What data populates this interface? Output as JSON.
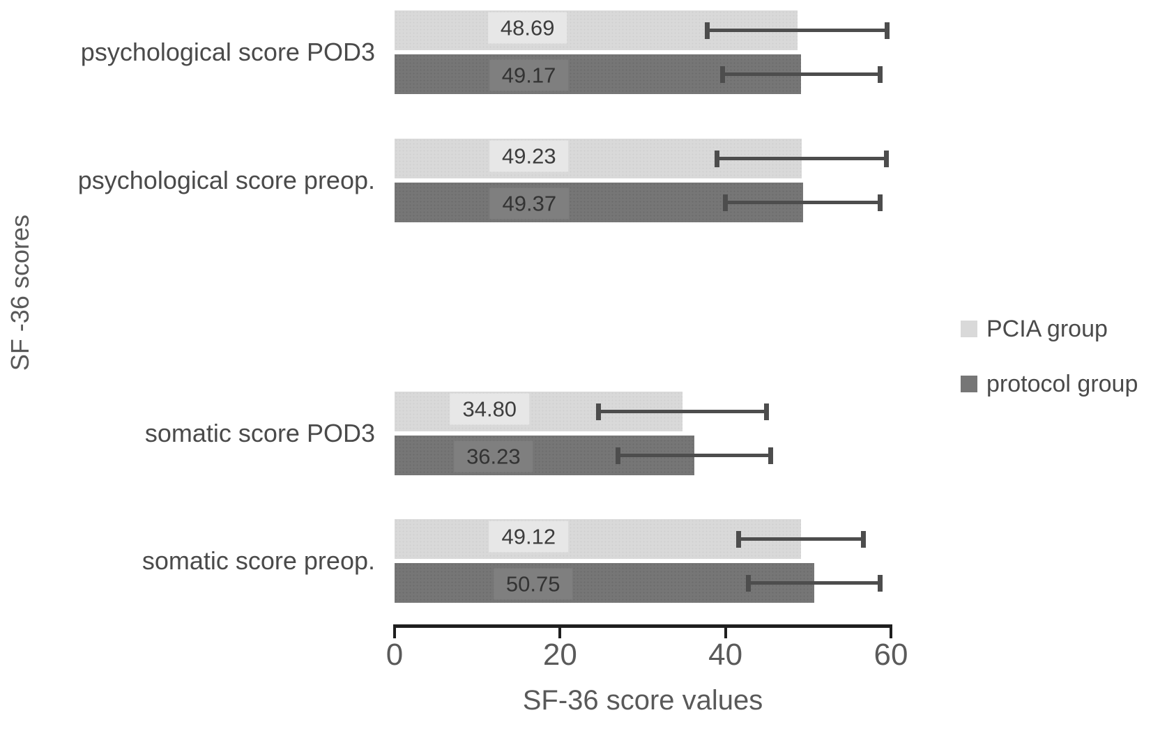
{
  "chart_data": {
    "type": "bar",
    "orientation": "horizontal",
    "title": "",
    "xlabel": "SF-36 score values",
    "ylabel": "SF -36 scores",
    "xlim": [
      0,
      60
    ],
    "xticks": [
      0,
      20,
      40,
      60
    ],
    "grid": false,
    "legend_position": "right-middle",
    "categories": [
      "psychological score POD3",
      "psychological score preop.",
      "somatic score POD3",
      "somatic score preop."
    ],
    "series": [
      {
        "name": "PCIA group",
        "color": "#d9d9d9",
        "values": [
          48.69,
          49.23,
          34.8,
          49.12
        ],
        "labels": [
          "48.69",
          "49.23",
          "34.80",
          "49.12"
        ],
        "error": [
          10.9,
          10.3,
          10.2,
          7.6
        ]
      },
      {
        "name": "protocol group",
        "color": "#767676",
        "values": [
          49.17,
          49.37,
          36.23,
          50.75
        ],
        "labels": [
          "49.17",
          "49.37",
          "36.23",
          "50.75"
        ],
        "error": [
          9.6,
          9.4,
          9.3,
          8.0
        ]
      }
    ],
    "error_bar_color": "#4d4d4d",
    "axis_color": "#1f1f1f",
    "tick_labels": [
      "0",
      "20",
      "40",
      "60"
    ]
  }
}
